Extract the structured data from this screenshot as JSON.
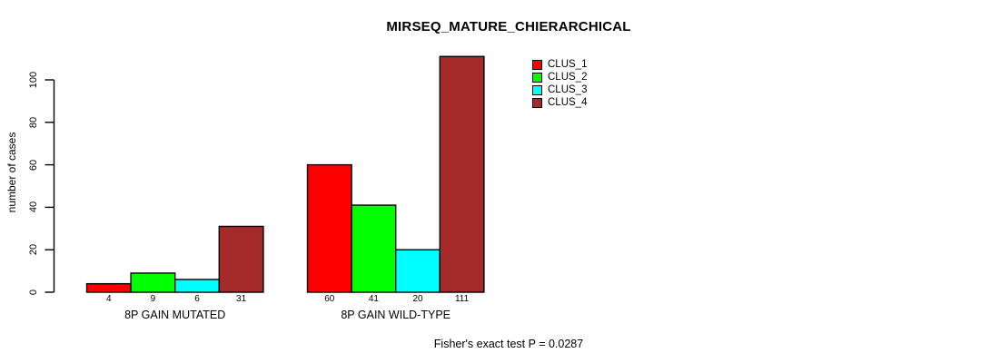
{
  "title": "MIRSEQ_MATURE_CHIERARCHICAL",
  "chart_data": {
    "type": "bar",
    "title": "MIRSEQ_MATURE_CHIERARCHICAL",
    "xlabel": "",
    "ylabel": "number of cases",
    "categories": [
      "8P GAIN MUTATED",
      "8P GAIN WILD-TYPE"
    ],
    "series": [
      {
        "name": "CLUS_1",
        "color": "#ff0000",
        "values": [
          4,
          60
        ]
      },
      {
        "name": "CLUS_2",
        "color": "#00ff00",
        "values": [
          9,
          41
        ]
      },
      {
        "name": "CLUS_3",
        "color": "#00ffff",
        "values": [
          6,
          20
        ]
      },
      {
        "name": "CLUS_4",
        "color": "#a52a2a",
        "values": [
          31,
          111
        ]
      }
    ],
    "yticks": [
      0,
      20,
      40,
      60,
      80,
      100
    ],
    "ylim": [
      0,
      111
    ],
    "grid": false,
    "legend_position": "inside-top-right",
    "bar_value_labels": true,
    "annotation": "Fisher's exact test P = 0.0287"
  }
}
